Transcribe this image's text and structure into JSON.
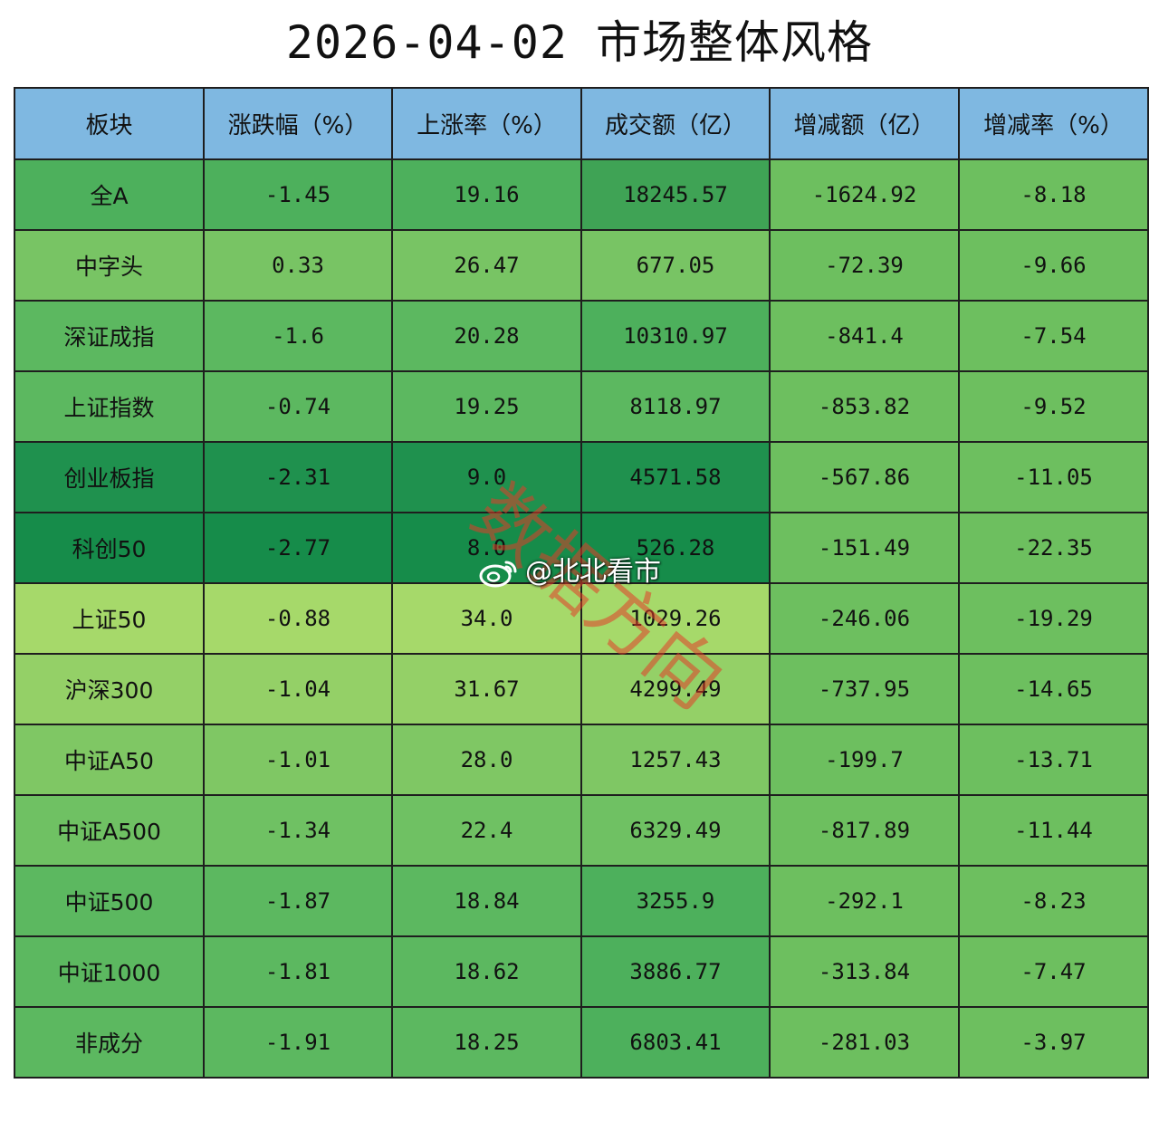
{
  "title": "2026-04-02 市场整体风格",
  "chart_data": {
    "type": "table",
    "title": "2026-04-02 市场整体风格",
    "columns": [
      "板块",
      "涨跌幅（%）",
      "上涨率（%）",
      "成交额（亿）",
      "增减额（亿）",
      "增减率（%）"
    ],
    "rows": [
      [
        "全A",
        "-1.45",
        "19.16",
        "18245.57",
        "-1624.92",
        "-8.18"
      ],
      [
        "中字头",
        "0.33",
        "26.47",
        "677.05",
        "-72.39",
        "-9.66"
      ],
      [
        "深证成指",
        "-1.6",
        "20.28",
        "10310.97",
        "-841.4",
        "-7.54"
      ],
      [
        "上证指数",
        "-0.74",
        "19.25",
        "8118.97",
        "-853.82",
        "-9.52"
      ],
      [
        "创业板指",
        "-2.31",
        "9.0",
        "4571.58",
        "-567.86",
        "-11.05"
      ],
      [
        "科创50",
        "-2.77",
        "8.0",
        "526.28",
        "-151.49",
        "-22.35"
      ],
      [
        "上证50",
        "-0.88",
        "34.0",
        "1029.26",
        "-246.06",
        "-19.29"
      ],
      [
        "沪深300",
        "-1.04",
        "31.67",
        "4299.49",
        "-737.95",
        "-14.65"
      ],
      [
        "中证A50",
        "-1.01",
        "28.0",
        "1257.43",
        "-199.7",
        "-13.71"
      ],
      [
        "中证A500",
        "-1.34",
        "22.4",
        "6329.49",
        "-817.89",
        "-11.44"
      ],
      [
        "中证500",
        "-1.87",
        "18.84",
        "3255.9",
        "-292.1",
        "-8.23"
      ],
      [
        "中证1000",
        "-1.81",
        "18.62",
        "3886.77",
        "-313.84",
        "-7.47"
      ],
      [
        "非成分",
        "-1.91",
        "18.25",
        "6803.41",
        "-281.03",
        "-3.97"
      ]
    ],
    "header_color": "#7fb8e1",
    "row_colors": [
      [
        "#4db05c",
        "#4db05c",
        "#4db05c",
        "#3fa355",
        "#6dbf5f",
        "#6dbf5f"
      ],
      [
        "#78c464",
        "#78c464",
        "#78c464",
        "#78c464",
        "#6dbf5f",
        "#6dbf5f"
      ],
      [
        "#5cb860",
        "#5cb860",
        "#5cb860",
        "#4db05c",
        "#6dbf5f",
        "#6dbf5f"
      ],
      [
        "#5cb860",
        "#5cb860",
        "#5cb860",
        "#5cb860",
        "#6dbf5f",
        "#6dbf5f"
      ],
      [
        "#1f914e",
        "#1f914e",
        "#1f914e",
        "#1f914e",
        "#6dbf5f",
        "#6dbf5f"
      ],
      [
        "#168c4a",
        "#168c4a",
        "#168c4a",
        "#168c4a",
        "#6dbf5f",
        "#6dbf5f"
      ],
      [
        "#a6d96a",
        "#a6d96a",
        "#a6d96a",
        "#a6d96a",
        "#6dbf5f",
        "#6dbf5f"
      ],
      [
        "#94d067",
        "#94d067",
        "#94d067",
        "#94d067",
        "#6dbf5f",
        "#6dbf5f"
      ],
      [
        "#7fc764",
        "#7fc764",
        "#7fc764",
        "#7fc764",
        "#6dbf5f",
        "#6dbf5f"
      ],
      [
        "#6fc163",
        "#6fc163",
        "#6fc163",
        "#6fc163",
        "#6dbf5f",
        "#6dbf5f"
      ],
      [
        "#5cb860",
        "#5cb860",
        "#5cb860",
        "#4db05c",
        "#6dbf5f",
        "#6dbf5f"
      ],
      [
        "#5cb860",
        "#5cb860",
        "#5cb860",
        "#4db05c",
        "#6dbf5f",
        "#6dbf5f"
      ],
      [
        "#5cb860",
        "#5cb860",
        "#5cb860",
        "#4db05c",
        "#6dbf5f",
        "#6dbf5f"
      ]
    ]
  },
  "watermarks": {
    "stamp_text": "数据方向",
    "weibo_handle": "@北北看市",
    "stamp_color": "#e23c28"
  }
}
